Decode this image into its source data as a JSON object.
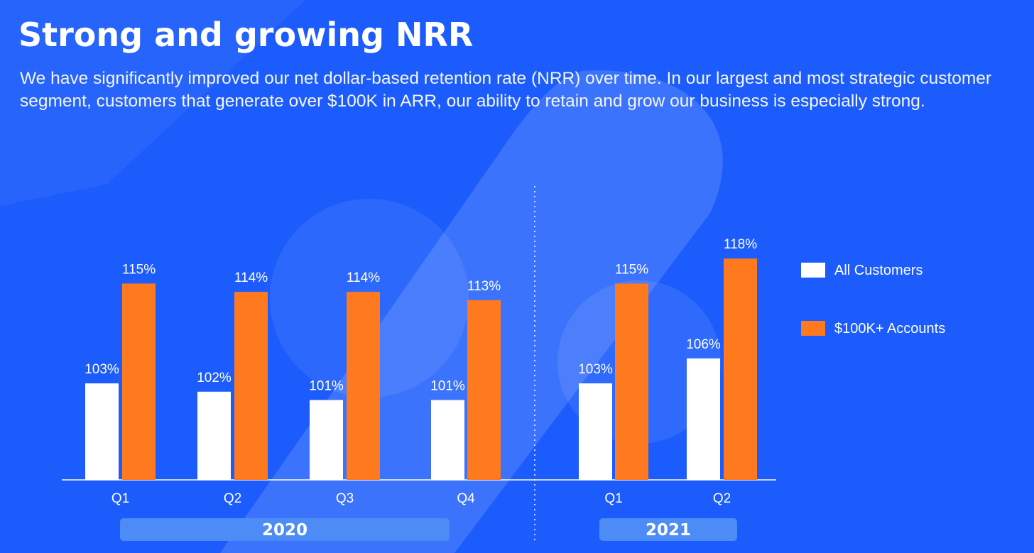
{
  "header": {
    "title": "Strong and growing NRR",
    "subtitle": "We have significantly improved our net dollar-based retention rate (NRR) over time. In our largest and most strategic customer segment, customers that generate over $100K in ARR, our ability to retain and grow our business is especially strong."
  },
  "colors": {
    "background": "#1c5cfc",
    "all_customers": "#ffffff",
    "accounts_100k": "#ff7a1f",
    "year_band": "#4d8bf7"
  },
  "chart_data": {
    "type": "bar",
    "categories": [
      "Q1",
      "Q2",
      "Q3",
      "Q4",
      "Q1",
      "Q2"
    ],
    "groups": [
      {
        "label": "2020",
        "categories": [
          "Q1",
          "Q2",
          "Q3",
          "Q4"
        ]
      },
      {
        "label": "2021",
        "categories": [
          "Q1",
          "Q2"
        ]
      }
    ],
    "series": [
      {
        "name": "All Customers",
        "values": [
          103,
          102,
          101,
          101,
          103,
          106
        ],
        "labels": [
          "103%",
          "102%",
          "101%",
          "101%",
          "103%",
          "106%"
        ]
      },
      {
        "name": "$100K+ Accounts",
        "values": [
          115,
          114,
          114,
          113,
          115,
          118
        ],
        "labels": [
          "115%",
          "114%",
          "114%",
          "113%",
          "115%",
          "118%"
        ]
      }
    ],
    "title": "",
    "xlabel": "",
    "ylabel": "",
    "grid": false,
    "legend": "right"
  }
}
